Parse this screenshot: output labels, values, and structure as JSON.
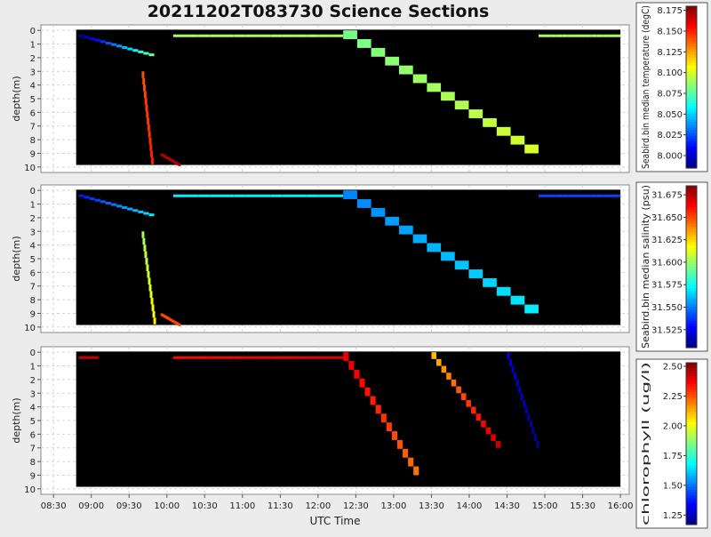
{
  "title": "20211202T083730 Science Sections",
  "xlabel": "UTC Time",
  "x_ticks": [
    "08:30",
    "09:00",
    "09:30",
    "10:00",
    "10:30",
    "11:00",
    "11:30",
    "12:00",
    "12:30",
    "13:00",
    "13:30",
    "14:00",
    "14:30",
    "15:00",
    "15:30",
    "16:00"
  ],
  "panels": [
    {
      "ylabel": "depth(m)",
      "colorbar_label": "Seabird.bin median temperature (degC)",
      "cb_ticks": [
        "8.175",
        "8.150",
        "8.125",
        "8.100",
        "8.075",
        "8.050",
        "8.025",
        "8.000"
      ],
      "cb_range": [
        7.985,
        8.18
      ]
    },
    {
      "ylabel": "depth(m)",
      "colorbar_label": "Seabird.bin median salinity (psu)",
      "cb_ticks": [
        "31.675",
        "31.650",
        "31.625",
        "31.600",
        "31.575",
        "31.550",
        "31.525"
      ],
      "cb_range": [
        31.505,
        31.685
      ]
    },
    {
      "ylabel": "depth(m)",
      "colorbar_label": "chlorophyll (ug/l)",
      "cb_ticks": [
        "2.50",
        "2.25",
        "2.00",
        "1.75",
        "1.50",
        "1.25"
      ],
      "cb_range": [
        1.17,
        2.53
      ]
    }
  ],
  "chart_data": {
    "type": "heatmap",
    "title": "20211202T083730 Science Sections",
    "xlabel": "UTC Time",
    "ylabel": "depth(m)",
    "x_range": [
      "08:20",
      "16:07"
    ],
    "y_range": [
      10.4,
      -0.4
    ],
    "y_ticks": [
      0,
      1,
      2,
      3,
      4,
      5,
      6,
      7,
      8,
      9,
      10
    ],
    "grid": true,
    "series": [
      {
        "name": "Seabird.bin median temperature (degC)",
        "color_scale": "jet",
        "profiles": [
          {
            "start": "08:50",
            "end": "09:50",
            "depth_from": 0.3,
            "depth_to": 1.8,
            "value_from": 7.99,
            "value_to": 8.08
          },
          {
            "start": "09:40",
            "end": "09:48",
            "depth_from": 3.0,
            "depth_to": 9.8,
            "value_from": 8.14,
            "value_to": 8.15
          },
          {
            "start": "09:55",
            "end": "10:10",
            "depth_from": 9.0,
            "depth_to": 9.8,
            "value_from": 8.17,
            "value_to": 8.17
          },
          {
            "start": "10:05",
            "end": "12:20",
            "depth_from": 0.3,
            "depth_to": 0.3,
            "value_from": 8.09,
            "value_to": 8.09
          },
          {
            "start": "12:20",
            "end": "14:55",
            "depth_from": 0.0,
            "depth_to": 9.0,
            "value_from": 8.08,
            "value_to": 8.1
          },
          {
            "start": "14:55",
            "end": "16:00",
            "depth_from": 0.3,
            "depth_to": 0.3,
            "value_from": 8.09,
            "value_to": 8.09
          }
        ]
      },
      {
        "name": "Seabird.bin median salinity (psu)",
        "color_scale": "jet",
        "profiles": [
          {
            "start": "08:50",
            "end": "09:50",
            "depth_from": 0.3,
            "depth_to": 1.8,
            "value_from": 31.53,
            "value_to": 31.57
          },
          {
            "start": "09:40",
            "end": "09:50",
            "depth_from": 3.0,
            "depth_to": 9.8,
            "value_from": 31.6,
            "value_to": 31.62
          },
          {
            "start": "09:55",
            "end": "10:10",
            "depth_from": 9.0,
            "depth_to": 9.8,
            "value_from": 31.65,
            "value_to": 31.65
          },
          {
            "start": "10:05",
            "end": "12:20",
            "depth_from": 0.3,
            "depth_to": 0.3,
            "value_from": 31.57,
            "value_to": 31.57
          },
          {
            "start": "12:20",
            "end": "14:55",
            "depth_from": 0.0,
            "depth_to": 9.0,
            "value_from": 31.55,
            "value_to": 31.57
          },
          {
            "start": "14:55",
            "end": "16:00",
            "depth_from": 0.3,
            "depth_to": 0.3,
            "value_from": 31.54,
            "value_to": 31.54
          }
        ]
      },
      {
        "name": "chlorophyll (ug/l)",
        "color_scale": "jet",
        "profiles": [
          {
            "start": "08:50",
            "end": "09:05",
            "depth_from": 0.3,
            "depth_to": 0.3,
            "value_from": 2.45,
            "value_to": 2.45
          },
          {
            "start": "10:05",
            "end": "12:20",
            "depth_from": 0.3,
            "depth_to": 0.3,
            "value_from": 2.35,
            "value_to": 2.4
          },
          {
            "start": "12:20",
            "end": "13:20",
            "depth_from": 0.0,
            "depth_to": 9.0,
            "value_from": 2.4,
            "value_to": 2.2
          },
          {
            "start": "13:30",
            "end": "14:25",
            "depth_from": 0.0,
            "depth_to": 7.0,
            "value_from": 2.1,
            "value_to": 2.45
          },
          {
            "start": "14:30",
            "end": "14:55",
            "depth_from": 0.0,
            "depth_to": 7.0,
            "value_from": 1.3,
            "value_to": 1.2
          }
        ]
      }
    ]
  }
}
